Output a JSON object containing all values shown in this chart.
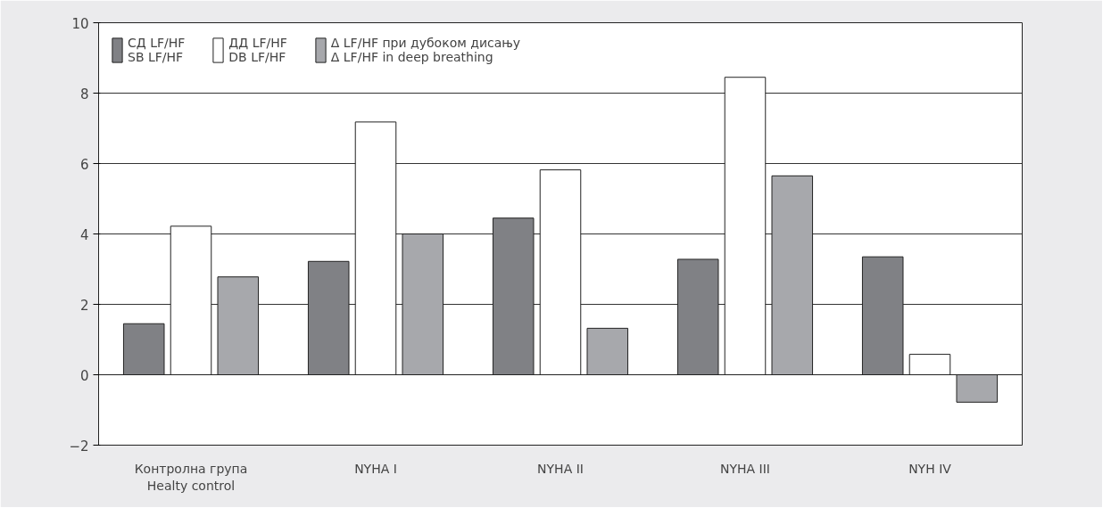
{
  "chart_data": {
    "type": "bar",
    "categories": [
      "Контролна група\nHealty control",
      "NYHA I",
      "NYHA II",
      "NYHA III",
      "NYH IV"
    ],
    "series": [
      {
        "name": "СД LF/HF\nSB LF/HF",
        "color": "#808185",
        "values": [
          1.45,
          3.22,
          4.45,
          3.28,
          3.35
        ]
      },
      {
        "name": "ДД LF/HF\nDB LF/HF",
        "color": "#ffffff",
        "values": [
          4.22,
          7.18,
          5.82,
          8.45,
          0.58
        ]
      },
      {
        "name": "Δ LF/HF при дубоком дисању\nΔ LF/HF in deep breathing",
        "color": "#a7a8ac",
        "values": [
          2.78,
          4.0,
          1.32,
          5.65,
          -0.78
        ]
      }
    ],
    "ylim": [
      -2,
      10
    ],
    "yticks": [
      -2,
      0,
      2,
      4,
      6,
      8,
      10
    ],
    "grid": "y",
    "legend": "top left"
  }
}
